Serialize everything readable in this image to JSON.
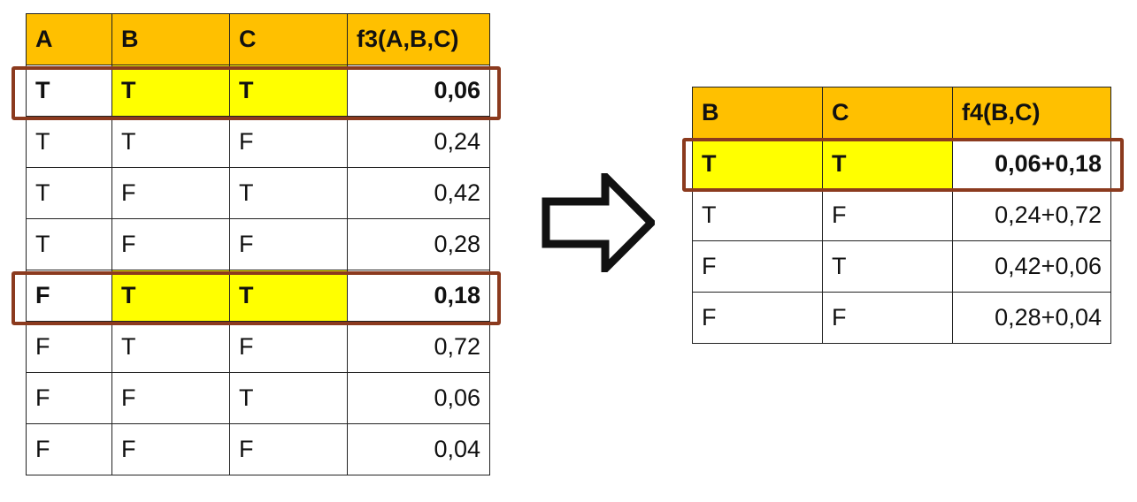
{
  "table_f3": {
    "headers": [
      "A",
      "B",
      "C",
      "f3(A,B,C)"
    ],
    "rows": [
      {
        "a": "T",
        "b": "T",
        "c": "T",
        "v": "0,06",
        "highlight": true
      },
      {
        "a": "T",
        "b": "T",
        "c": "F",
        "v": "0,24",
        "highlight": false
      },
      {
        "a": "T",
        "b": "F",
        "c": "T",
        "v": "0,42",
        "highlight": false
      },
      {
        "a": "T",
        "b": "F",
        "c": "F",
        "v": "0,28",
        "highlight": false
      },
      {
        "a": "F",
        "b": "T",
        "c": "T",
        "v": "0,18",
        "highlight": true
      },
      {
        "a": "F",
        "b": "T",
        "c": "F",
        "v": "0,72",
        "highlight": false
      },
      {
        "a": "F",
        "b": "F",
        "c": "T",
        "v": "0,06",
        "highlight": false
      },
      {
        "a": "F",
        "b": "F",
        "c": "F",
        "v": "0,04",
        "highlight": false
      }
    ]
  },
  "table_f4": {
    "headers": [
      "B",
      "C",
      "f4(B,C)"
    ],
    "rows": [
      {
        "b": "T",
        "c": "T",
        "v": "0,06+0,18",
        "highlight": true
      },
      {
        "b": "T",
        "c": "F",
        "v": "0,24+0,72",
        "highlight": false
      },
      {
        "b": "F",
        "c": "T",
        "v": "0,42+0,06",
        "highlight": false
      },
      {
        "b": "F",
        "c": "F",
        "v": "0,28+0,04",
        "highlight": false
      }
    ]
  },
  "colors": {
    "header_bg": "#ffc000",
    "highlight_bg": "#ffff00",
    "box_outline": "#8b3a1e",
    "border": "#222222"
  },
  "icons": {
    "arrow": "right-arrow-outline-icon"
  }
}
